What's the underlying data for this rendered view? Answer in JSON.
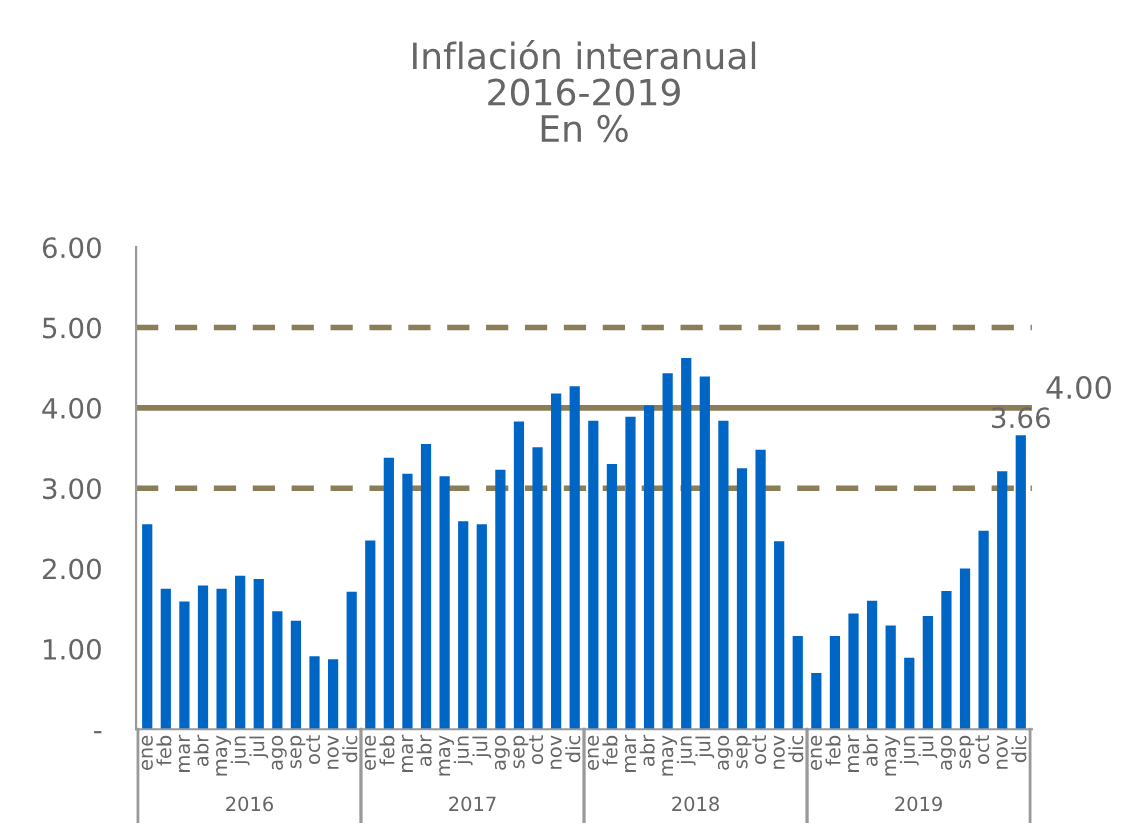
{
  "chart_data": {
    "type": "bar",
    "title": "Inflación interanual\n2016-2019\nEn %",
    "categories": [
      "ene",
      "feb",
      "mar",
      "abr",
      "may",
      "jun",
      "jul",
      "ago",
      "sep",
      "oct",
      "nov",
      "dic",
      "ene",
      "feb",
      "mar",
      "abr",
      "may",
      "jun",
      "jul",
      "ago",
      "sep",
      "oct",
      "nov",
      "dic",
      "ene",
      "feb",
      "mar",
      "abr",
      "may",
      "jun",
      "jul",
      "ago",
      "sep",
      "oct",
      "nov",
      "dic",
      "ene",
      "feb",
      "mar",
      "abr",
      "may",
      "jun",
      "jul",
      "ago",
      "sep",
      "oct",
      "nov",
      "dic"
    ],
    "values": [
      2.55,
      1.75,
      1.59,
      1.79,
      1.75,
      1.91,
      1.87,
      1.47,
      1.35,
      0.91,
      0.87,
      1.71,
      2.35,
      3.38,
      3.18,
      3.55,
      3.15,
      2.59,
      2.55,
      3.23,
      3.83,
      3.51,
      4.18,
      4.27,
      3.84,
      3.3,
      3.89,
      4.03,
      4.43,
      4.62,
      4.39,
      3.84,
      3.25,
      3.48,
      2.34,
      1.16,
      0.7,
      1.16,
      1.44,
      1.6,
      1.29,
      0.89,
      1.41,
      1.72,
      2.0,
      2.47,
      3.21,
      3.66
    ],
    "value_labels": [
      null,
      null,
      null,
      null,
      null,
      null,
      null,
      null,
      null,
      null,
      null,
      null,
      null,
      null,
      null,
      null,
      null,
      null,
      null,
      null,
      null,
      null,
      null,
      null,
      null,
      null,
      null,
      null,
      null,
      null,
      null,
      null,
      null,
      null,
      null,
      null,
      null,
      null,
      null,
      null,
      null,
      null,
      null,
      null,
      null,
      null,
      null,
      "3.66"
    ],
    "color": "#0066c6",
    "ylim": [
      0,
      6
    ],
    "yticks": [
      {
        "value": 0,
        "label": "-"
      },
      {
        "value": 1,
        "label": "1.00"
      },
      {
        "value": 2,
        "label": "2.00"
      },
      {
        "value": 3,
        "label": "3.00"
      },
      {
        "value": 4,
        "label": "4.00"
      },
      {
        "value": 5,
        "label": "5.00"
      },
      {
        "value": 6,
        "label": "6.00"
      }
    ],
    "ref_lines": [
      {
        "axis": "y",
        "value": 5,
        "label": null,
        "color": "#8b7d55",
        "line_style": "dashed"
      },
      {
        "axis": "y",
        "value": 4,
        "label": "4.00",
        "color": "#8b7d55",
        "line_style": "solid"
      },
      {
        "axis": "y",
        "value": 3,
        "label": null,
        "color": "#8b7d55",
        "line_style": "dashed"
      }
    ],
    "annotations": [
      "2016",
      "2017",
      "2018",
      "2019"
    ],
    "grid": false
  }
}
